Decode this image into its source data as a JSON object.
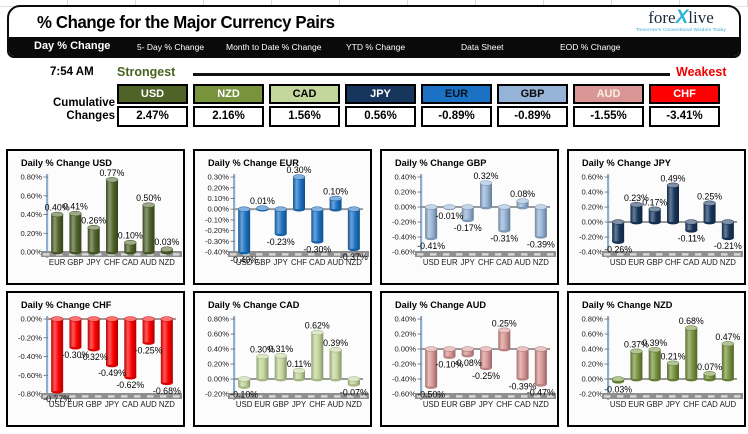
{
  "header": {
    "title": "% Change for the Major Currency Pairs",
    "logo": {
      "text_pre": "fore",
      "text_x": "X",
      "text_post": "live",
      "tagline": "Tomorrow's Conventional Wisdom Today"
    }
  },
  "nav": {
    "tabs": [
      {
        "label": "Day % Change",
        "active": true
      },
      {
        "label": "5- Day % Change",
        "active": false
      },
      {
        "label": "Month to Date % Change",
        "active": false
      },
      {
        "label": "YTD % Change",
        "active": false
      },
      {
        "label": "Data Sheet",
        "active": false
      },
      {
        "label": "EOD % Change",
        "active": false
      }
    ]
  },
  "summary": {
    "time": "7:54 AM",
    "strongest_label": "Strongest",
    "weakest_label": "Weakest",
    "cumulative_label_line1": "Cumulative",
    "cumulative_label_line2": "Changes",
    "currencies": [
      {
        "code": "USD",
        "value": "2.47%",
        "color": "#4f6228",
        "text_color": "#ffffff"
      },
      {
        "code": "NZD",
        "value": "2.16%",
        "color": "#77933c",
        "text_color": "#ffffff"
      },
      {
        "code": "CAD",
        "value": "1.56%",
        "color": "#c3d69b",
        "text_color": "#000000"
      },
      {
        "code": "JPY",
        "value": "0.56%",
        "color": "#17365d",
        "text_color": "#ffffff"
      },
      {
        "code": "EUR",
        "value": "-0.89%",
        "color": "#1b72c4",
        "text_color": "#07111f"
      },
      {
        "code": "GBP",
        "value": "-0.89%",
        "color": "#95b3d7",
        "text_color": "#0a0a0a"
      },
      {
        "code": "AUD",
        "value": "-1.55%",
        "color": "#d99694",
        "text_color": "#f8f1e4"
      },
      {
        "code": "CHF",
        "value": "-3.41%",
        "color": "#fe0000",
        "text_color": "#ffffff"
      }
    ]
  },
  "chart_data": [
    {
      "type": "bar",
      "title": "Daily % Change USD",
      "bar_color": "#4f6228",
      "categories": [
        "EUR",
        "GBP",
        "JPY",
        "CHF",
        "CAD",
        "AUD",
        "NZD"
      ],
      "values": [
        0.4,
        0.41,
        0.26,
        0.77,
        0.1,
        0.5,
        0.03
      ],
      "labels": [
        "0.40%",
        "0.41%",
        "0.26%",
        "0.77%",
        "0.10%",
        "0.50%",
        "0.03%"
      ],
      "ylim": [
        0.0,
        0.8
      ],
      "ytick_step": 0.2,
      "grid": false,
      "legend": "none"
    },
    {
      "type": "bar",
      "title": "Daily % Change EUR",
      "bar_color": "#1b72c4",
      "categories": [
        "USD",
        "GBP",
        "JPY",
        "CHF",
        "CAD",
        "AUD",
        "NZD"
      ],
      "values": [
        -0.4,
        0.01,
        -0.23,
        0.3,
        -0.3,
        0.1,
        -0.37
      ],
      "labels": [
        "-0.40%",
        "0.01%",
        "-0.23%",
        "0.30%",
        "-0.30%",
        "0.10%",
        "-0.37%"
      ],
      "ylim": [
        -0.4,
        0.3
      ],
      "ytick_step": 0.1,
      "grid": false,
      "legend": "none"
    },
    {
      "type": "bar",
      "title": "Daily % Change GBP",
      "bar_color": "#95b3d7",
      "categories": [
        "USD",
        "EUR",
        "JPY",
        "CHF",
        "CAD",
        "AUD",
        "NZD"
      ],
      "values": [
        -0.41,
        -0.01,
        -0.17,
        0.32,
        -0.31,
        0.08,
        -0.39
      ],
      "labels": [
        "-0.41%",
        "-0.01%",
        "-0.17%",
        "0.32%",
        "-0.31%",
        "0.08%",
        "-0.39%"
      ],
      "ylim": [
        -0.6,
        0.4
      ],
      "ytick_step": 0.2,
      "grid": false,
      "legend": "none"
    },
    {
      "type": "bar",
      "title": "Daily % Change JPY",
      "bar_color": "#17365d",
      "categories": [
        "USD",
        "EUR",
        "GBP",
        "CHF",
        "CAD",
        "AUD",
        "NZD"
      ],
      "values": [
        -0.26,
        0.23,
        0.17,
        0.49,
        -0.11,
        0.25,
        -0.21
      ],
      "labels": [
        "-0.26%",
        "0.23%",
        "0.17%",
        "0.49%",
        "-0.11%",
        "0.25%",
        "-0.21%"
      ],
      "ylim": [
        -0.4,
        0.6
      ],
      "ytick_step": 0.2,
      "grid": false,
      "legend": "none"
    },
    {
      "type": "bar",
      "title": "Daily % Change CHF",
      "bar_color": "#fe0000",
      "categories": [
        "USD",
        "EUR",
        "GBP",
        "JPY",
        "CAD",
        "AUD",
        "NZD"
      ],
      "values": [
        -0.77,
        -0.3,
        -0.32,
        -0.49,
        -0.62,
        -0.25,
        -0.68
      ],
      "labels": [
        "-0.77%",
        "-0.30%",
        "-0.32%",
        "-0.49%",
        "-0.62%",
        "-0.25%",
        "-0.68%"
      ],
      "ylim": [
        -0.8,
        0.0
      ],
      "ytick_step": 0.2,
      "grid": false,
      "legend": "none"
    },
    {
      "type": "bar",
      "title": "Daily % Change CAD",
      "bar_color": "#c3d69b",
      "categories": [
        "USD",
        "EUR",
        "GBP",
        "JPY",
        "CHF",
        "AUD",
        "NZD"
      ],
      "values": [
        -0.1,
        0.3,
        0.31,
        0.11,
        0.62,
        0.39,
        -0.07
      ],
      "labels": [
        "-0.10%",
        "0.30%",
        "0.31%",
        "0.11%",
        "0.62%",
        "0.39%",
        "-0.07%"
      ],
      "ylim": [
        -0.2,
        0.8
      ],
      "ytick_step": 0.2,
      "grid": false,
      "legend": "none"
    },
    {
      "type": "bar",
      "title": "Daily % Change AUD",
      "bar_color": "#d99694",
      "categories": [
        "USD",
        "EUR",
        "GBP",
        "JPY",
        "CHF",
        "CAD",
        "NZD"
      ],
      "values": [
        -0.5,
        -0.1,
        -0.08,
        -0.25,
        0.25,
        -0.39,
        -0.47
      ],
      "labels": [
        "-0.50%",
        "-0.10%",
        "-0.08%",
        "-0.25%",
        "0.25%",
        "-0.39%",
        "-0.47%"
      ],
      "ylim": [
        -0.6,
        0.4
      ],
      "ytick_step": 0.2,
      "grid": false,
      "legend": "none"
    },
    {
      "type": "bar",
      "title": "Daily % Change NZD",
      "bar_color": "#77933c",
      "categories": [
        "USD",
        "EUR",
        "GBP",
        "JPY",
        "CHF",
        "CAD",
        "AUD"
      ],
      "values": [
        -0.03,
        0.37,
        0.39,
        0.21,
        0.68,
        0.07,
        0.47
      ],
      "labels": [
        "-0.03%",
        "0.37%",
        "0.39%",
        "0.21%",
        "0.68%",
        "0.07%",
        "0.47%"
      ],
      "ylim": [
        -0.2,
        0.8
      ],
      "ytick_step": 0.2,
      "grid": false,
      "legend": "none"
    }
  ]
}
